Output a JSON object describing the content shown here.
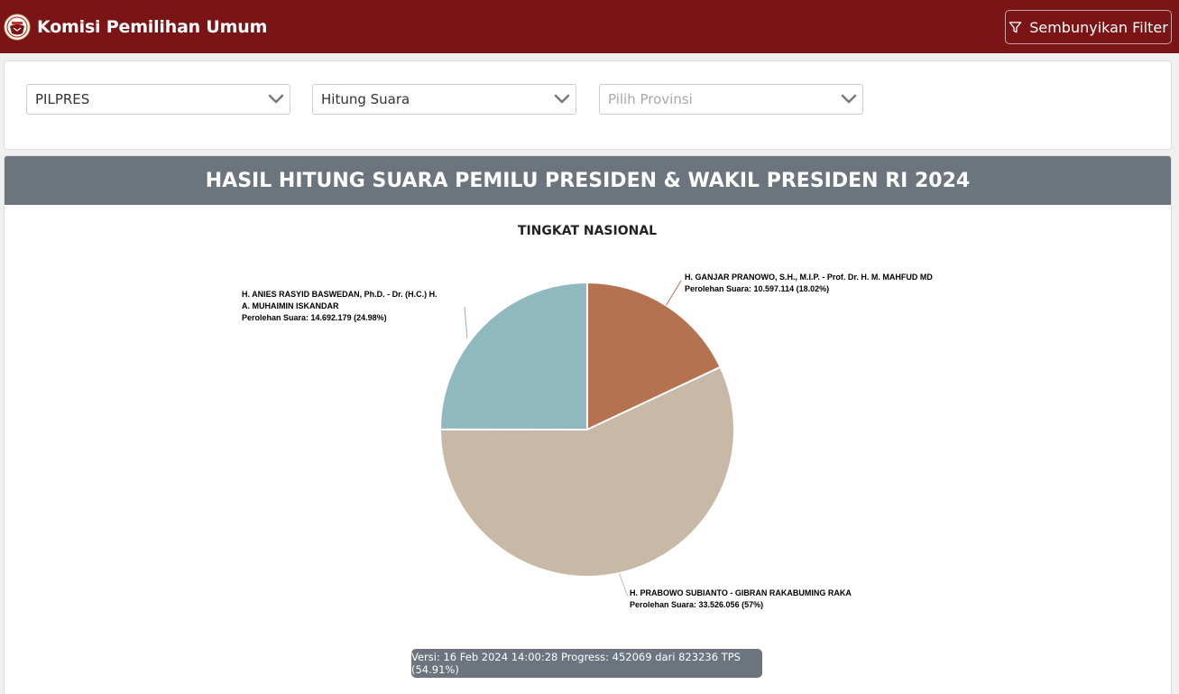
{
  "navbar": {
    "brand_title": "Komisi Pemilihan Umum",
    "filter_button_label": "Sembunyikan Filter",
    "logo_icon": "kpu-logo-icon",
    "filter_icon": "funnel-icon",
    "background_color": "#7b1416"
  },
  "filters": {
    "election_type": {
      "value": "PILPRES"
    },
    "count_type": {
      "value": "Hitung Suara"
    },
    "province": {
      "placeholder": "Pilih Provinsi"
    }
  },
  "result": {
    "heading": "HASIL HITUNG SUARA PEMILU PRESIDEN & WAKIL PRESIDEN RI 2024",
    "version_text": "Versi: 16 Feb 2024 14:00:28 Progress: 452069 dari 823236 TPS (54.91%)"
  },
  "chart_data": {
    "type": "pie",
    "title": "TINGKAT NASIONAL",
    "legend": "none",
    "series": [
      {
        "name": "H. ANIES RASYID BASWEDAN, Ph.D. - Dr. (H.C.) H. A. MUHAIMIN ISKANDAR",
        "name_lines": [
          "H. ANIES RASYID BASWEDAN, Ph.D. - Dr. (H.C.) H.",
          "A. MUHAIMIN ISKANDAR"
        ],
        "value": 14692179,
        "value_text": "Perolehan Suara: 14.692.179 (24.98%)",
        "color": "#8fb8bf"
      },
      {
        "name": "H. PRABOWO SUBIANTO - GIBRAN RAKABUMING RAKA",
        "name_lines": [
          "H. PRABOWO SUBIANTO - GIBRAN RAKABUMING RAKA"
        ],
        "value": 33526056,
        "value_text": "Perolehan Suara: 33.526.056 (57%)",
        "color": "#c8b8a6"
      },
      {
        "name": "H. GANJAR PRANOWO, S.H., M.I.P. - Prof. Dr. H. M. MAHFUD MD",
        "name_lines": [
          "H. GANJAR PRANOWO, S.H., M.I.P. - Prof. Dr. H. M. MAHFUD MD"
        ],
        "value": 10597114,
        "value_text": "Perolehan Suara: 10.597.114 (18.02%)",
        "color": "#b47251"
      }
    ]
  }
}
